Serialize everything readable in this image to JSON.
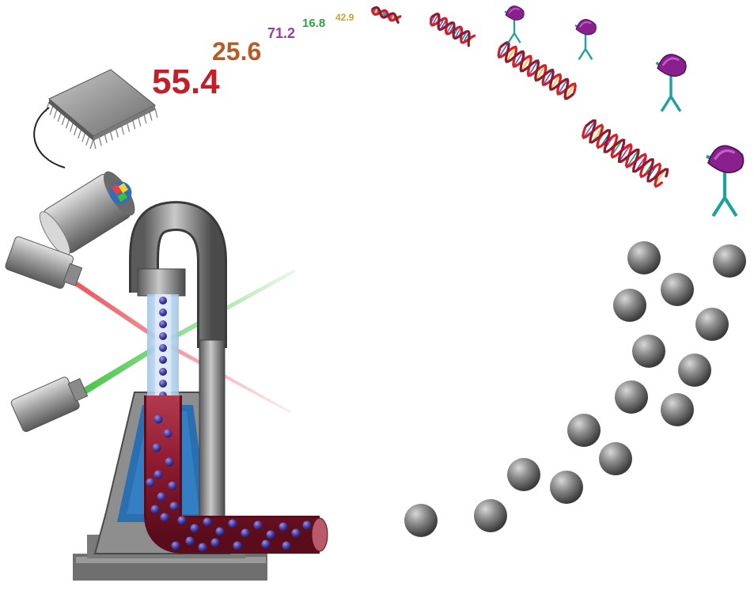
{
  "readout_values": [
    {
      "text": "55.4",
      "color": "#c0202a"
    },
    {
      "text": "25.6",
      "color": "#b85a28"
    },
    {
      "text": "71.2",
      "color": "#a03aa6"
    },
    {
      "text": "16.8",
      "color": "#2fa04a"
    },
    {
      "text": "42.9",
      "color": "#caa030"
    }
  ],
  "colors": {
    "laser_red": "#e8404a",
    "laser_green": "#3cc03c",
    "flow_blue": "#2a6fb0",
    "tube_maroon": "#8e1a2e",
    "particle": "#4b3fa8",
    "bead_gray": "#7a7a7a",
    "dna_red": "#d0202a",
    "dna_teal": "#1fa0a0",
    "protein_magenta": "#8a1f8e"
  },
  "icons": [
    "microchip-icon",
    "detector-camera-icon",
    "red-laser-icon",
    "green-laser-icon",
    "flow-cell-icon",
    "sample-tube-icon",
    "dna-helix-icon",
    "antibody-protein-icon",
    "bead-sphere-icon"
  ]
}
